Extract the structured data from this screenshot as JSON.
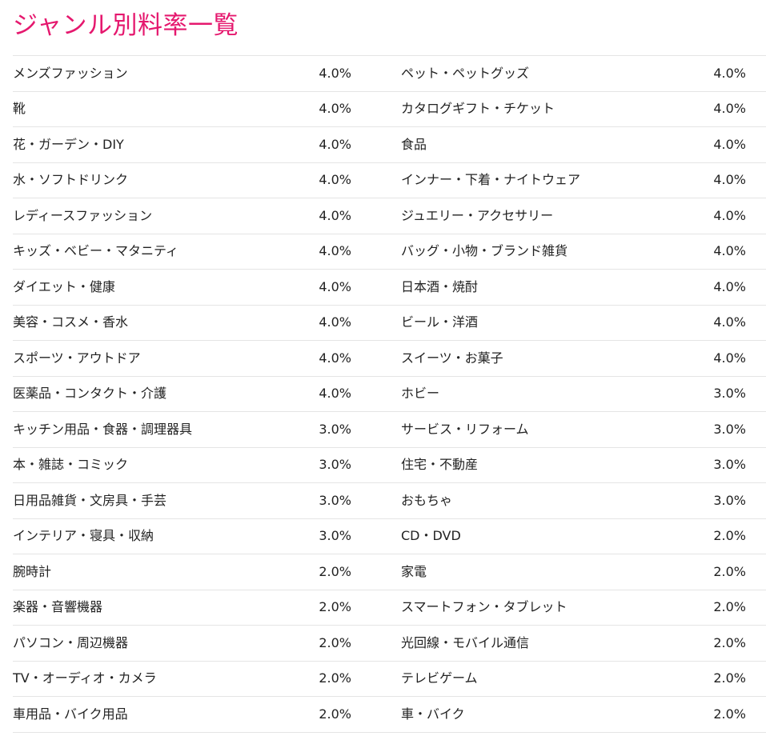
{
  "header": {
    "title": "ジャンル別料率一覧"
  },
  "rows": [
    {
      "left": {
        "genre": "メンズファッション",
        "rate": "4.0%"
      },
      "right": {
        "genre": "ペット・ペットグッズ",
        "rate": "4.0%"
      }
    },
    {
      "left": {
        "genre": "靴",
        "rate": "4.0%"
      },
      "right": {
        "genre": "カタログギフト・チケット",
        "rate": "4.0%"
      }
    },
    {
      "left": {
        "genre": "花・ガーデン・DIY",
        "rate": "4.0%"
      },
      "right": {
        "genre": "食品",
        "rate": "4.0%"
      }
    },
    {
      "left": {
        "genre": "水・ソフトドリンク",
        "rate": "4.0%"
      },
      "right": {
        "genre": "インナー・下着・ナイトウェア",
        "rate": "4.0%"
      }
    },
    {
      "left": {
        "genre": "レディースファッション",
        "rate": "4.0%"
      },
      "right": {
        "genre": "ジュエリー・アクセサリー",
        "rate": "4.0%"
      }
    },
    {
      "left": {
        "genre": "キッズ・ベビー・マタニティ",
        "rate": "4.0%"
      },
      "right": {
        "genre": "バッグ・小物・ブランド雑貨",
        "rate": "4.0%"
      }
    },
    {
      "left": {
        "genre": "ダイエット・健康",
        "rate": "4.0%"
      },
      "right": {
        "genre": "日本酒・焼酎",
        "rate": "4.0%"
      }
    },
    {
      "left": {
        "genre": "美容・コスメ・香水",
        "rate": "4.0%"
      },
      "right": {
        "genre": "ビール・洋酒",
        "rate": "4.0%"
      }
    },
    {
      "left": {
        "genre": "スポーツ・アウトドア",
        "rate": "4.0%"
      },
      "right": {
        "genre": "スイーツ・お菓子",
        "rate": "4.0%"
      }
    },
    {
      "left": {
        "genre": "医薬品・コンタクト・介護",
        "rate": "4.0%"
      },
      "right": {
        "genre": "ホビー",
        "rate": "3.0%"
      }
    },
    {
      "left": {
        "genre": "キッチン用品・食器・調理器具",
        "rate": "3.0%"
      },
      "right": {
        "genre": "サービス・リフォーム",
        "rate": "3.0%"
      }
    },
    {
      "left": {
        "genre": "本・雑誌・コミック",
        "rate": "3.0%"
      },
      "right": {
        "genre": "住宅・不動産",
        "rate": "3.0%"
      }
    },
    {
      "left": {
        "genre": "日用品雑貨・文房具・手芸",
        "rate": "3.0%"
      },
      "right": {
        "genre": "おもちゃ",
        "rate": "3.0%"
      }
    },
    {
      "left": {
        "genre": "インテリア・寝具・収納",
        "rate": "3.0%"
      },
      "right": {
        "genre": "CD・DVD",
        "rate": "2.0%"
      }
    },
    {
      "left": {
        "genre": "腕時計",
        "rate": "2.0%"
      },
      "right": {
        "genre": "家電",
        "rate": "2.0%"
      }
    },
    {
      "left": {
        "genre": "楽器・音響機器",
        "rate": "2.0%"
      },
      "right": {
        "genre": "スマートフォン・タブレット",
        "rate": "2.0%"
      }
    },
    {
      "left": {
        "genre": "パソコン・周辺機器",
        "rate": "2.0%"
      },
      "right": {
        "genre": "光回線・モバイル通信",
        "rate": "2.0%"
      }
    },
    {
      "left": {
        "genre": "TV・オーディオ・カメラ",
        "rate": "2.0%"
      },
      "right": {
        "genre": "テレビゲーム",
        "rate": "2.0%"
      }
    },
    {
      "left": {
        "genre": "車用品・バイク用品",
        "rate": "2.0%"
      },
      "right": {
        "genre": "車・バイク",
        "rate": "2.0%"
      }
    }
  ]
}
